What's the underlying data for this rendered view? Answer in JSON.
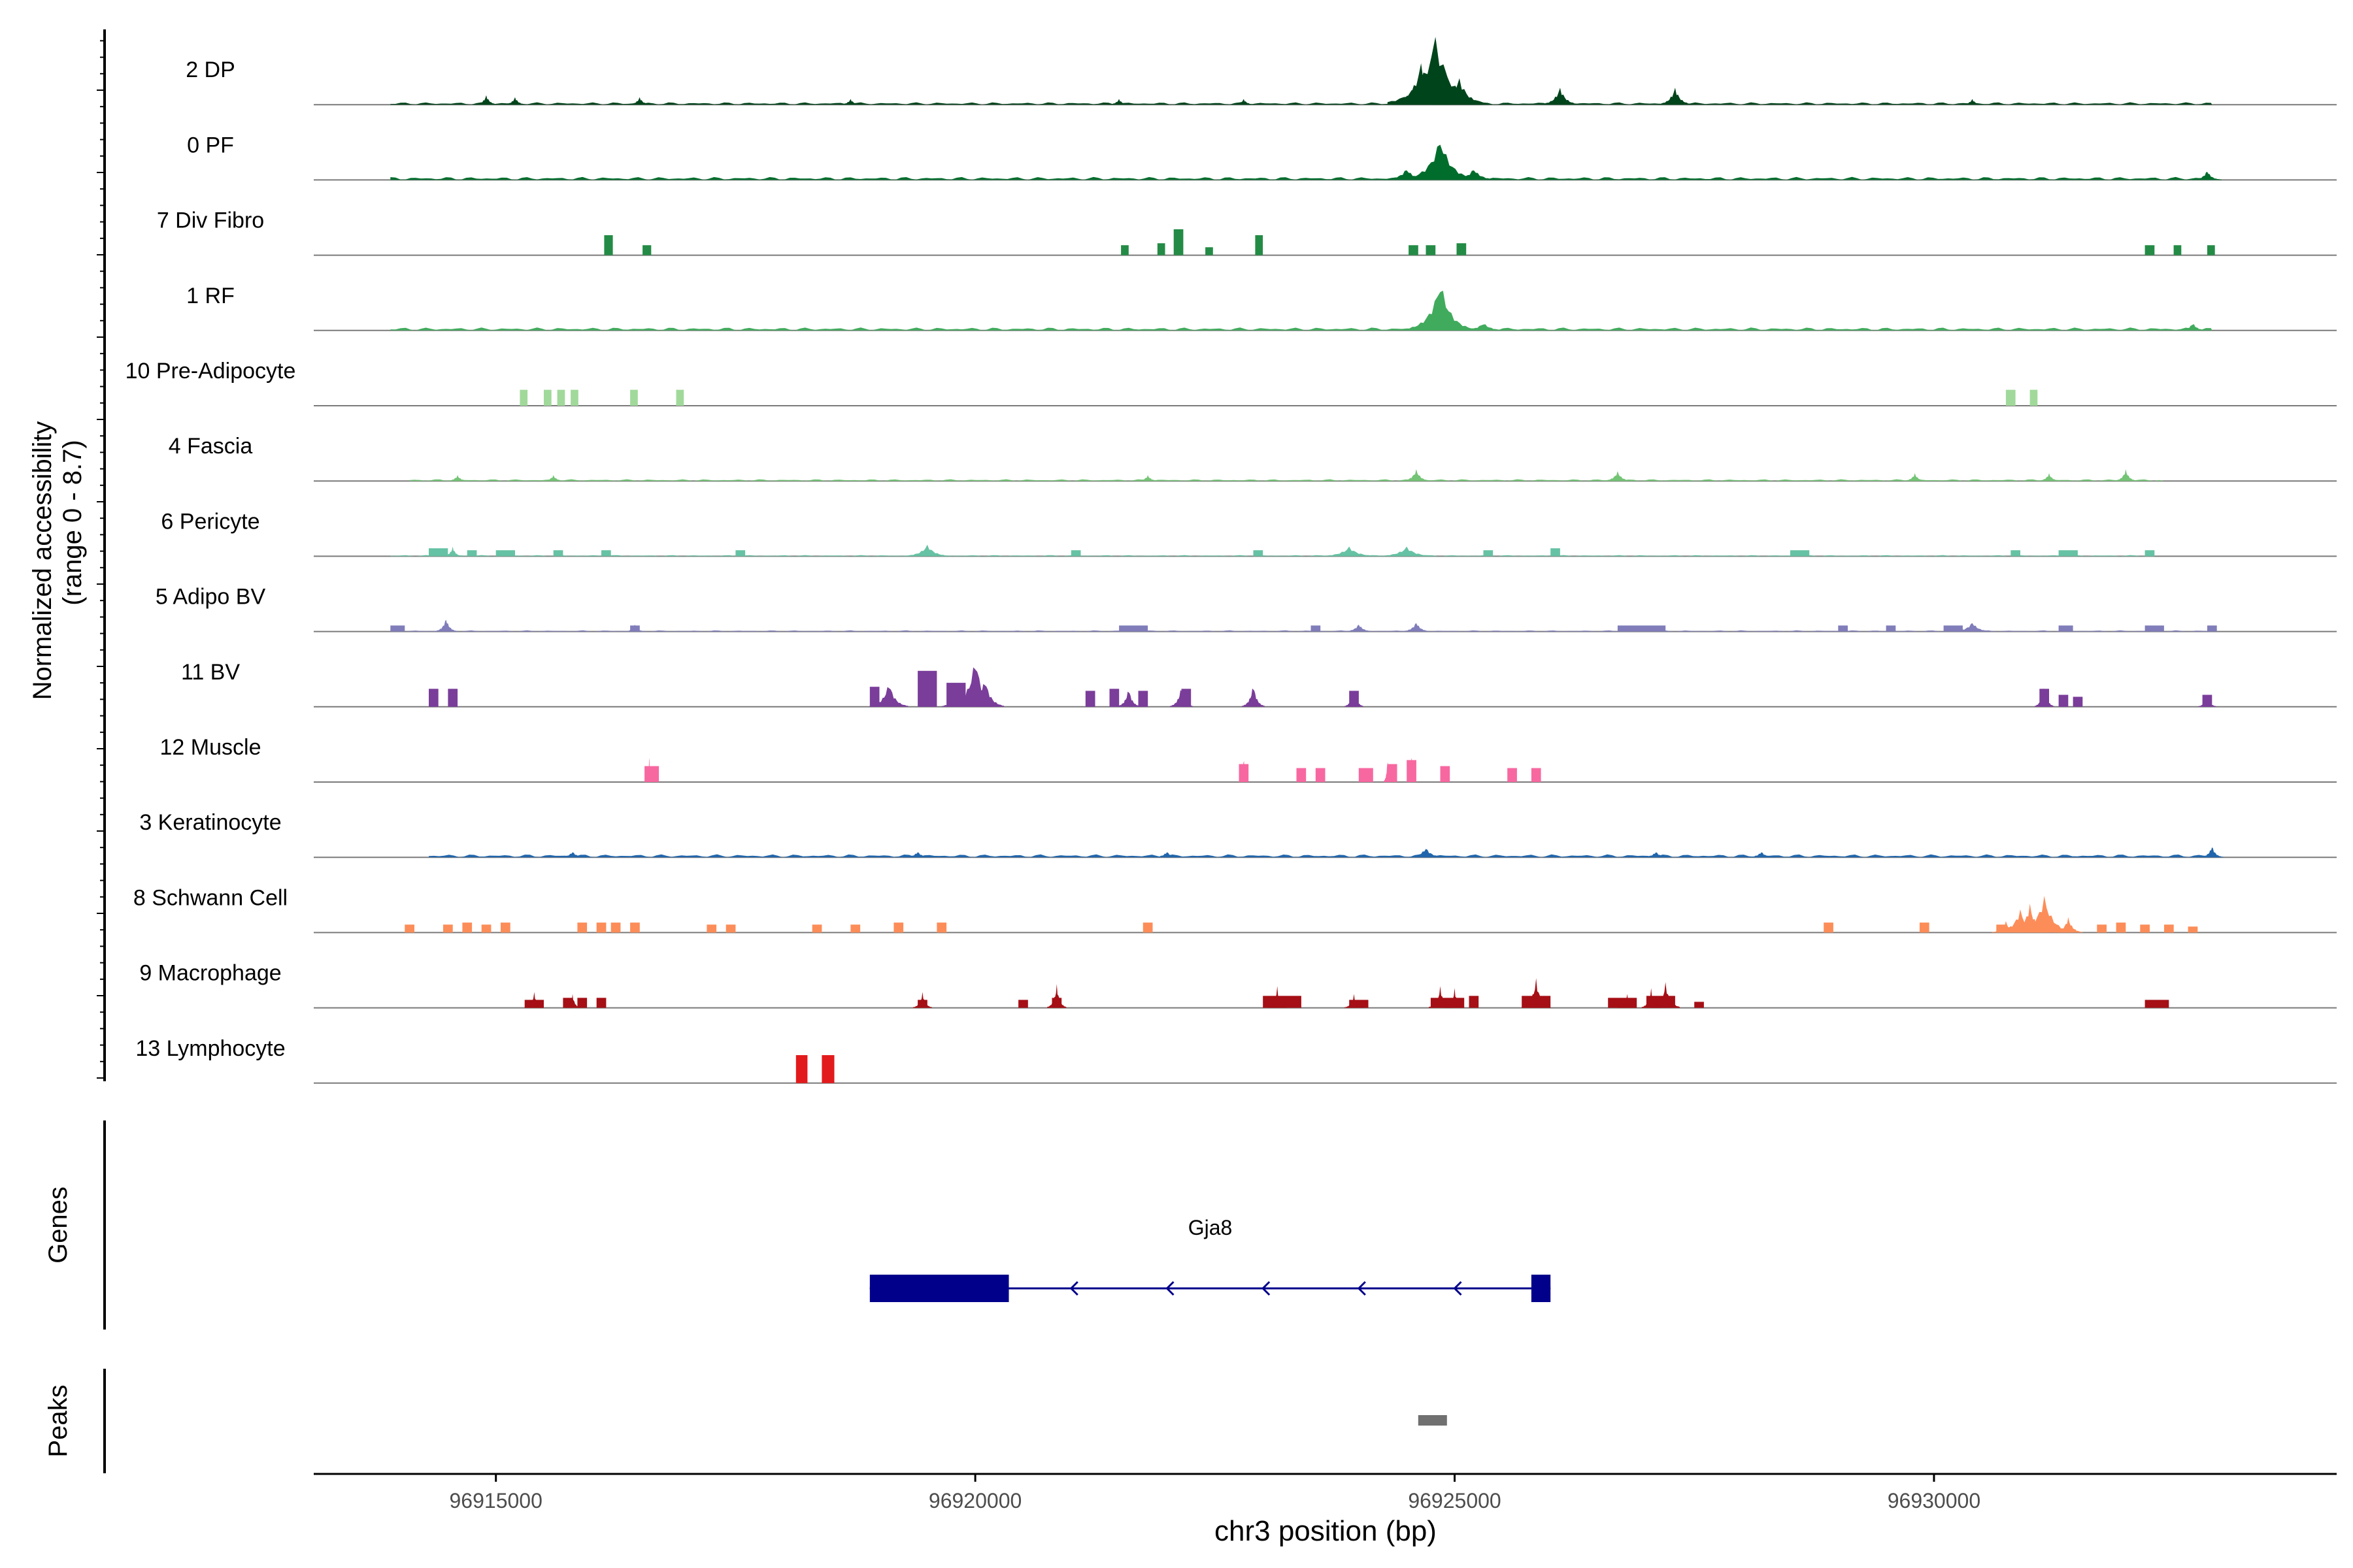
{
  "chart_data": {
    "type": "area",
    "title": "",
    "xlabel": "chr3 position (bp)",
    "ylabel_line1": "Normalized accessibility",
    "ylabel_line2": "(range 0 - 8.7)",
    "y_range": [
      0,
      8.7
    ],
    "xlim": [
      96913100,
      96934200
    ],
    "x_ticks": [
      96915000,
      96920000,
      96925000,
      96930000
    ],
    "x_tick_labels": [
      "96915000",
      "96920000",
      "96925000",
      "96930000"
    ],
    "genes_label": "Genes",
    "peaks_label": "Peaks",
    "gene": {
      "name": "Gja8",
      "start": 96918900,
      "end": 96926000,
      "strand": "-",
      "exons": [
        [
          96918900,
          96920350
        ],
        [
          96925800,
          96926000
        ]
      ],
      "arrows_at": [
        96921000,
        96922000,
        96923000,
        96924000,
        96925000
      ],
      "color": "#00008B"
    },
    "peaks": [
      {
        "start": 96924620,
        "end": 96924920,
        "color": "#707070"
      }
    ],
    "series": [
      {
        "name": "2 DP",
        "color": "#00441B",
        "bg": {
          "start": 96913900,
          "end": 96932900,
          "h": 0.04
        },
        "peaks": [
          [
            96924800,
            3.6,
            500
          ],
          [
            96924650,
            2.2,
            300
          ],
          [
            96925050,
            1.4,
            300
          ],
          [
            96926100,
            0.9,
            200
          ],
          [
            96927300,
            0.9,
            180
          ],
          [
            96914900,
            0.5,
            120
          ],
          [
            96915200,
            0.4,
            120
          ],
          [
            96916500,
            0.4,
            120
          ],
          [
            96918700,
            0.3,
            120
          ],
          [
            96921500,
            0.3,
            120
          ],
          [
            96922800,
            0.3,
            120
          ],
          [
            96930400,
            0.3,
            120
          ]
        ]
      },
      {
        "name": "0 PF",
        "color": "#006D2C",
        "bg": {
          "start": 96913900,
          "end": 96933000,
          "h": 0.05
        },
        "peaks": [
          [
            96924850,
            2.2,
            380
          ],
          [
            96924500,
            0.6,
            250
          ],
          [
            96925200,
            0.6,
            250
          ],
          [
            96932850,
            0.5,
            150
          ]
        ]
      },
      {
        "name": "7 Div Fibro",
        "color": "#238B45",
        "bg": null,
        "blocks": [
          [
            96916130,
            96916220,
            1.0
          ],
          [
            96916530,
            96916620,
            0.5
          ],
          [
            96921520,
            96921600,
            0.5
          ],
          [
            96922070,
            96922170,
            1.3
          ],
          [
            96921900,
            96921980,
            0.6
          ],
          [
            96922400,
            96922480,
            0.4
          ],
          [
            96922920,
            96923000,
            1.0
          ],
          [
            96924520,
            96924620,
            0.5
          ],
          [
            96924700,
            96924800,
            0.5
          ],
          [
            96925020,
            96925120,
            0.6
          ],
          [
            96932200,
            96932300,
            0.5
          ],
          [
            96932500,
            96932580,
            0.5
          ],
          [
            96932850,
            96932930,
            0.5
          ]
        ]
      },
      {
        "name": "1 RF",
        "color": "#41AB5D",
        "bg": {
          "start": 96913900,
          "end": 96932900,
          "h": 0.05
        },
        "peaks": [
          [
            96924850,
            2.6,
            350
          ],
          [
            96925300,
            0.4,
            250
          ],
          [
            96932700,
            0.4,
            150
          ]
        ]
      },
      {
        "name": "10 Pre-Adipocyte",
        "color": "#A1D99B",
        "bg": null,
        "blocks": [
          [
            96915250,
            96915330,
            0.8
          ],
          [
            96915500,
            96915580,
            0.8
          ],
          [
            96915640,
            96915720,
            0.8
          ],
          [
            96915780,
            96915860,
            0.8
          ],
          [
            96916400,
            96916480,
            0.8
          ],
          [
            96916880,
            96916960,
            0.8
          ],
          [
            96930750,
            96930850,
            0.8
          ],
          [
            96931000,
            96931080,
            0.8
          ]
        ]
      },
      {
        "name": "4 Fascia",
        "color": "#74C476",
        "bg": {
          "start": 96914100,
          "end": 96932400,
          "h": 0.03
        },
        "peaks": [
          [
            96924600,
            0.6,
            150
          ],
          [
            96926700,
            0.5,
            150
          ],
          [
            96932000,
            0.6,
            120
          ],
          [
            96929800,
            0.4,
            120
          ],
          [
            96931200,
            0.4,
            120
          ],
          [
            96914600,
            0.3,
            120
          ],
          [
            96915600,
            0.3,
            120
          ],
          [
            96921800,
            0.3,
            120
          ]
        ]
      },
      {
        "name": "6 Pericyte",
        "color": "#66C2A4",
        "bg": {
          "start": 96913900,
          "end": 96932300,
          "h": 0.02
        },
        "blocks": [
          [
            96914300,
            96914500,
            0.4
          ],
          [
            96914700,
            96914800,
            0.3
          ],
          [
            96915000,
            96915200,
            0.3
          ],
          [
            96915600,
            96915700,
            0.3
          ],
          [
            96916100,
            96916200,
            0.3
          ],
          [
            96917500,
            96917600,
            0.3
          ],
          [
            96921000,
            96921100,
            0.3
          ],
          [
            96922900,
            96923000,
            0.3
          ],
          [
            96925300,
            96925400,
            0.3
          ],
          [
            96926000,
            96926100,
            0.4
          ],
          [
            96928500,
            96928700,
            0.3
          ],
          [
            96930800,
            96930900,
            0.3
          ],
          [
            96931300,
            96931500,
            0.3
          ],
          [
            96932200,
            96932300,
            0.3
          ]
        ],
        "peaks": [
          [
            96914550,
            0.5,
            100
          ],
          [
            96919500,
            0.6,
            250
          ],
          [
            96923900,
            0.5,
            300
          ],
          [
            96924500,
            0.5,
            300
          ]
        ]
      },
      {
        "name": "5 Adipo BV",
        "color": "#807DBA",
        "bg": {
          "start": 96913900,
          "end": 96932900,
          "h": 0.02
        },
        "blocks": [
          [
            96913900,
            96914050,
            0.3
          ],
          [
            96916400,
            96916500,
            0.3
          ],
          [
            96921500,
            96921800,
            0.3
          ],
          [
            96923500,
            96923600,
            0.3
          ],
          [
            96926700,
            96927200,
            0.3
          ],
          [
            96929000,
            96929100,
            0.3
          ],
          [
            96929500,
            96929600,
            0.3
          ],
          [
            96930100,
            96930300,
            0.3
          ],
          [
            96931300,
            96931450,
            0.3
          ],
          [
            96932200,
            96932400,
            0.3
          ],
          [
            96932850,
            96932950,
            0.3
          ]
        ],
        "peaks": [
          [
            96914480,
            0.7,
            120
          ],
          [
            96916450,
            0.4,
            100
          ],
          [
            96924000,
            0.4,
            150
          ],
          [
            96924600,
            0.5,
            150
          ],
          [
            96930400,
            0.5,
            200
          ]
        ]
      },
      {
        "name": "11 BV",
        "color": "#7A3D9A",
        "bg": null,
        "blocks": [
          [
            96914300,
            96914400,
            0.9
          ],
          [
            96914500,
            96914600,
            0.9
          ],
          [
            96918900,
            96919000,
            1.0
          ],
          [
            96919400,
            96919600,
            1.8
          ],
          [
            96919700,
            96919900,
            1.2
          ],
          [
            96921150,
            96921250,
            0.8
          ],
          [
            96921400,
            96921500,
            0.9
          ],
          [
            96921700,
            96921800,
            0.8
          ],
          [
            96922150,
            96922250,
            0.9
          ],
          [
            96923900,
            96924000,
            0.8
          ],
          [
            96931100,
            96931200,
            0.9
          ],
          [
            96931300,
            96931400,
            0.6
          ],
          [
            96931450,
            96931550,
            0.5
          ],
          [
            96932800,
            96932900,
            0.6
          ]
        ],
        "peaks": [
          [
            96919100,
            1.3,
            200
          ],
          [
            96919800,
            1.0,
            150
          ],
          [
            96920000,
            2.6,
            250
          ],
          [
            96920100,
            1.5,
            200
          ],
          [
            96921600,
            1.0,
            120
          ],
          [
            96922150,
            1.1,
            120
          ],
          [
            96922900,
            1.2,
            120
          ],
          [
            96923950,
            1.0,
            100
          ],
          [
            96931150,
            1.2,
            100
          ],
          [
            96932850,
            0.6,
            100
          ]
        ]
      },
      {
        "name": "12 Muscle",
        "color": "#F768A1",
        "bg": null,
        "blocks": [
          [
            96916550,
            96916700,
            0.8
          ],
          [
            96922750,
            96922850,
            0.9
          ],
          [
            96923350,
            96923450,
            0.7
          ],
          [
            96923550,
            96923650,
            0.7
          ],
          [
            96924000,
            96924150,
            0.7
          ],
          [
            96924300,
            96924400,
            0.9
          ],
          [
            96924500,
            96924600,
            1.1
          ],
          [
            96924850,
            96924950,
            0.8
          ],
          [
            96925550,
            96925650,
            0.7
          ],
          [
            96925800,
            96925900,
            0.7
          ]
        ],
        "peaks": [
          [
            96916600,
            1.6,
            20
          ],
          [
            96922800,
            1.4,
            40
          ],
          [
            96924300,
            1.3,
            40
          ],
          [
            96924550,
            1.6,
            40
          ]
        ]
      },
      {
        "name": "3 Keratinocyte",
        "color": "#2166AC",
        "bg": {
          "start": 96914300,
          "end": 96933000,
          "h": 0.05
        },
        "peaks": [
          [
            96924700,
            0.5,
            200
          ],
          [
            96932900,
            0.6,
            120
          ],
          [
            96915800,
            0.3,
            150
          ],
          [
            96919400,
            0.3,
            150
          ],
          [
            96922000,
            0.3,
            150
          ],
          [
            96927100,
            0.3,
            150
          ],
          [
            96928200,
            0.3,
            150
          ]
        ]
      },
      {
        "name": "8 Schwann Cell",
        "color": "#FC8D59",
        "bg": null,
        "blocks": [
          [
            96914050,
            96914150,
            0.4
          ],
          [
            96914450,
            96914550,
            0.4
          ],
          [
            96914650,
            96914750,
            0.5
          ],
          [
            96914850,
            96914950,
            0.4
          ],
          [
            96915050,
            96915150,
            0.5
          ],
          [
            96915850,
            96915950,
            0.5
          ],
          [
            96916050,
            96916150,
            0.5
          ],
          [
            96916200,
            96916300,
            0.5
          ],
          [
            96916400,
            96916500,
            0.5
          ],
          [
            96917200,
            96917300,
            0.4
          ],
          [
            96917400,
            96917500,
            0.4
          ],
          [
            96918300,
            96918400,
            0.4
          ],
          [
            96918700,
            96918800,
            0.4
          ],
          [
            96919150,
            96919250,
            0.5
          ],
          [
            96919600,
            96919700,
            0.5
          ],
          [
            96921750,
            96921850,
            0.5
          ],
          [
            96928850,
            96928950,
            0.5
          ],
          [
            96929850,
            96929950,
            0.5
          ],
          [
            96930650,
            96930750,
            0.4
          ],
          [
            96931700,
            96931800,
            0.4
          ],
          [
            96931900,
            96932000,
            0.5
          ],
          [
            96932150,
            96932250,
            0.4
          ],
          [
            96932400,
            96932500,
            0.4
          ],
          [
            96932650,
            96932750,
            0.3
          ]
        ],
        "peaks": [
          [
            96930900,
            1.2,
            250
          ],
          [
            96931150,
            1.9,
            300
          ],
          [
            96931000,
            1.5,
            200
          ],
          [
            96931400,
            0.8,
            150
          ],
          [
            96930750,
            0.6,
            150
          ]
        ]
      },
      {
        "name": "9 Macrophage",
        "color": "#A50F15",
        "bg": null,
        "blocks": [
          [
            96915300,
            96915500,
            0.4
          ],
          [
            96915700,
            96915800,
            0.5
          ],
          [
            96915850,
            96915950,
            0.5
          ],
          [
            96916050,
            96916150,
            0.5
          ],
          [
            96919400,
            96919500,
            0.4
          ],
          [
            96920450,
            96920550,
            0.4
          ],
          [
            96920800,
            96920900,
            0.5
          ],
          [
            96923000,
            96923400,
            0.6
          ],
          [
            96923900,
            96924100,
            0.4
          ],
          [
            96924750,
            96925100,
            0.5
          ],
          [
            96925150,
            96925250,
            0.6
          ],
          [
            96925700,
            96926000,
            0.6
          ],
          [
            96926600,
            96926900,
            0.5
          ],
          [
            96927000,
            96927300,
            0.6
          ],
          [
            96927500,
            96927600,
            0.3
          ],
          [
            96932200,
            96932450,
            0.4
          ]
        ],
        "peaks": [
          [
            96915400,
            0.8,
            100
          ],
          [
            96915800,
            0.7,
            80
          ],
          [
            96919450,
            0.8,
            100
          ],
          [
            96920850,
            1.2,
            100
          ],
          [
            96923150,
            1.1,
            100
          ],
          [
            96923950,
            0.7,
            100
          ],
          [
            96924850,
            1.1,
            120
          ],
          [
            96925000,
            1.0,
            100
          ],
          [
            96925850,
            1.5,
            150
          ],
          [
            96926800,
            0.7,
            100
          ],
          [
            96927200,
            1.3,
            150
          ],
          [
            96927050,
            1.0,
            100
          ]
        ]
      },
      {
        "name": "13 Lymphocyte",
        "color": "#E31A1C",
        "bg": null,
        "blocks": [
          [
            96918130,
            96918250,
            1.4
          ],
          [
            96918400,
            96918530,
            1.4
          ]
        ]
      }
    ]
  }
}
